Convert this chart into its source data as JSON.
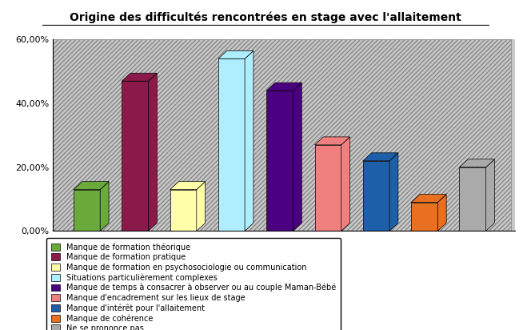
{
  "title": "Origine des difficultés rencontrées en stage avec l'allaitement",
  "values": [
    13.0,
    47.0,
    13.0,
    54.0,
    44.0,
    27.0,
    22.0,
    9.0,
    20.0
  ],
  "colors": [
    "#6aaa3a",
    "#8b1a4a",
    "#ffffaa",
    "#aeeeff",
    "#4b0082",
    "#f08080",
    "#1e5faa",
    "#e87020",
    "#aaaaaa"
  ],
  "legend_labels": [
    "Manque de formation théorique",
    "Manque de formation pratique",
    "Manque de formation en psychosociologie ou communication",
    "Situations particulièrement complexes",
    "Manque de temps à consacrer à observer ou au couple Maman-Bébé",
    "Manque d'encadrement sur les lieux de stage",
    "Manque d'intérêt pour l'allaitement",
    "Manque de cohérence",
    "Ne se prononce pas"
  ],
  "ylim": [
    0,
    60
  ],
  "yticks": [
    0,
    20,
    40,
    60
  ],
  "ytick_labels": [
    "0,00%",
    "20,00%",
    "40,00%",
    "60,00%"
  ],
  "background_color": "#ffffff",
  "figsize": [
    6.64,
    4.12
  ],
  "dpi": 100
}
